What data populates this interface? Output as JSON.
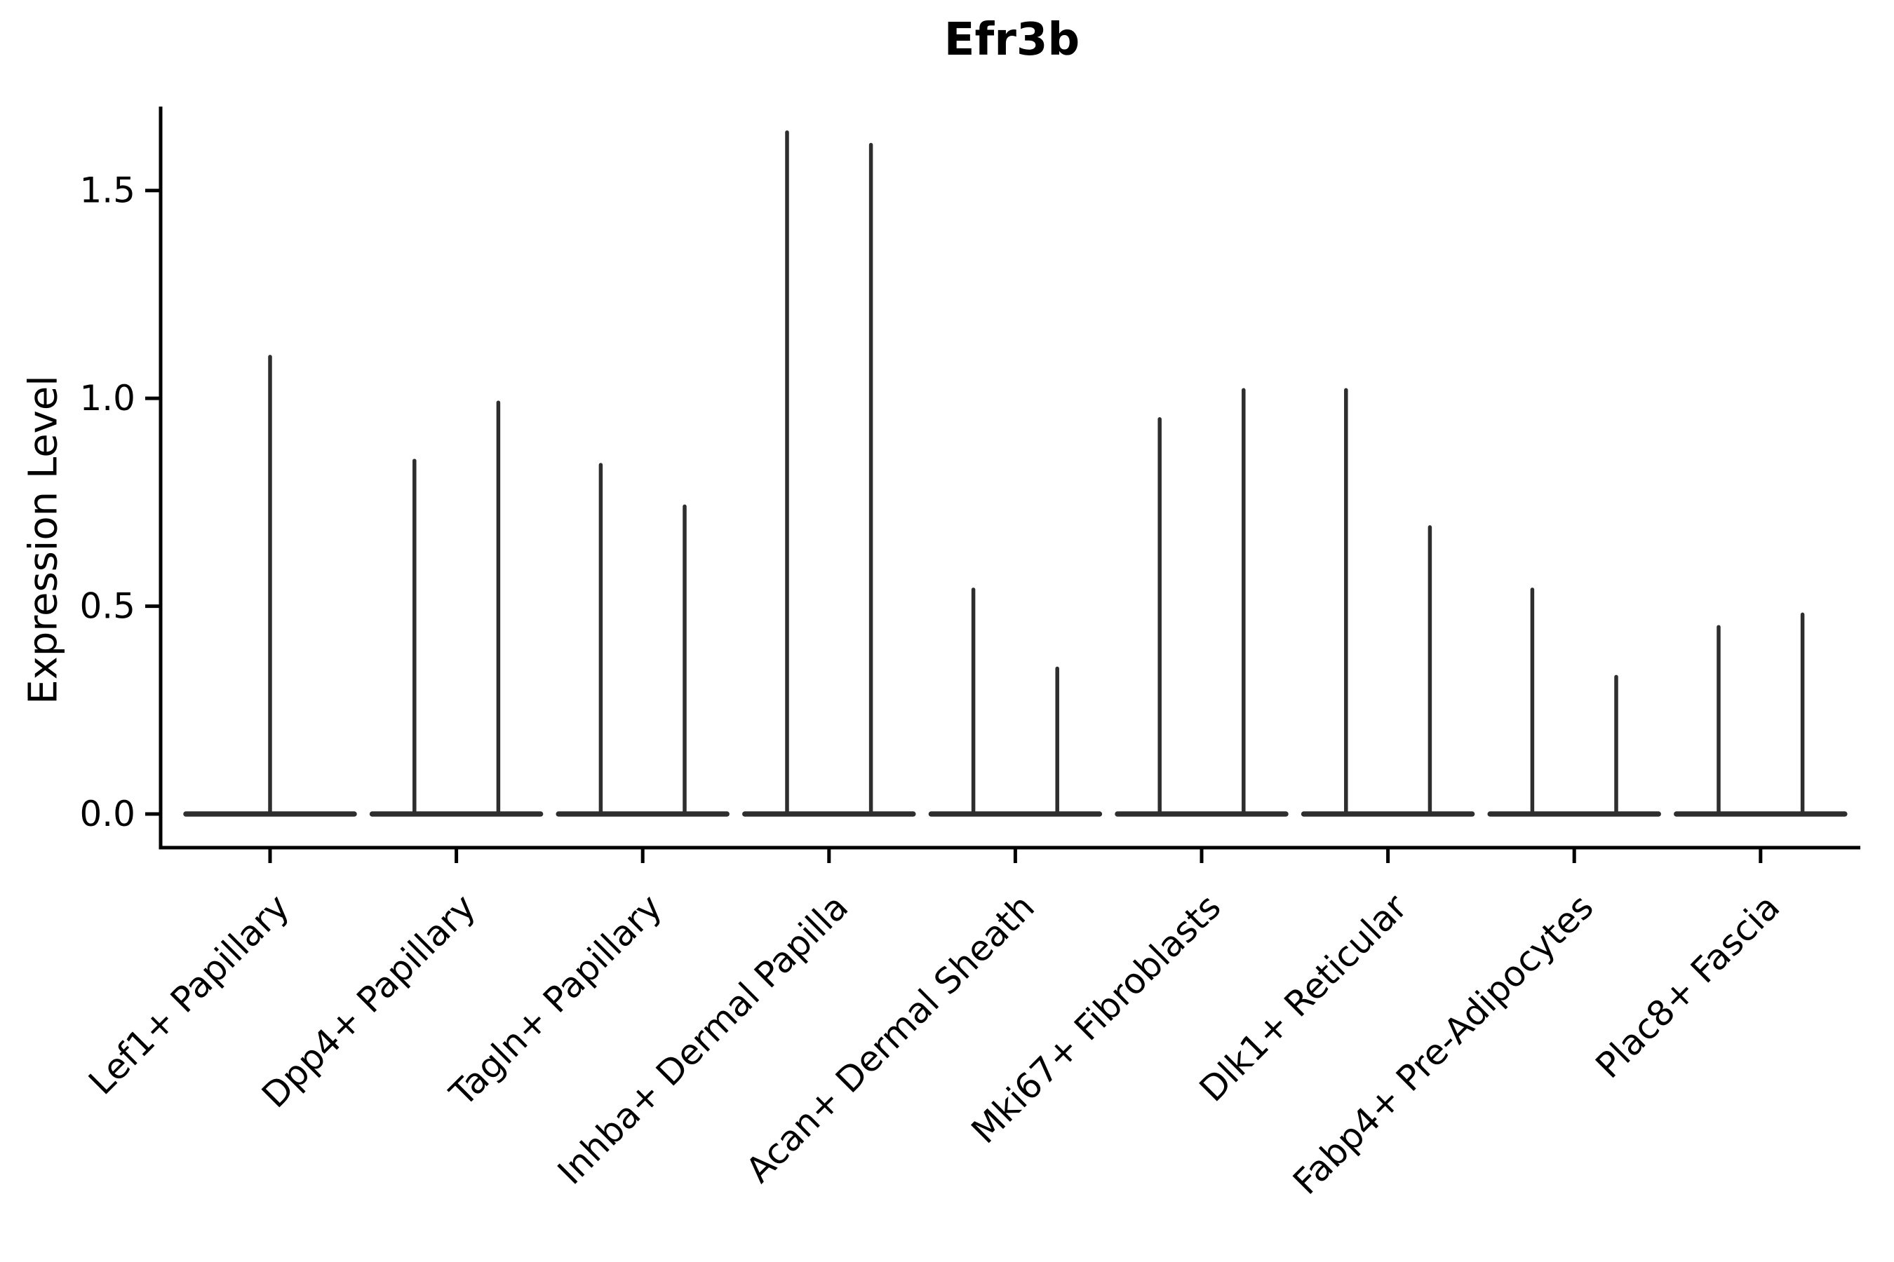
{
  "chart_data": {
    "type": "violin",
    "title": "Efr3b",
    "ylabel": "Expression Level",
    "xlabel": "",
    "grid": false,
    "legend": "none",
    "ylim": [
      -0.081,
      1.702
    ],
    "ytick_labels": [
      "0.0",
      "0.5",
      "1.0",
      "1.5"
    ],
    "ytick_values": [
      0.0,
      0.5,
      1.0,
      1.5
    ],
    "categories": [
      "Lef1+ Papillary",
      "Dpp4+ Papillary",
      "Tagln+ Papillary",
      "Inhba+ Dermal Papilla",
      "Acan+ Dermal Sheath",
      "Mki67+ Fibroblasts",
      "Dlk1+ Reticular",
      "Fabp4+ Pre-Adipocytes",
      "Plac8+ Fascia"
    ],
    "violins": [
      {
        "category": "Lef1+ Papillary",
        "spike_maxima": [
          1.1
        ]
      },
      {
        "category": "Dpp4+ Papillary",
        "spike_maxima": [
          0.85,
          0.99
        ]
      },
      {
        "category": "Tagln+ Papillary",
        "spike_maxima": [
          0.84,
          0.74
        ]
      },
      {
        "category": "Inhba+ Dermal Papilla",
        "spike_maxima": [
          1.64,
          1.61
        ]
      },
      {
        "category": "Acan+ Dermal Sheath",
        "spike_maxima": [
          0.54,
          0.35
        ]
      },
      {
        "category": "Mki67+ Fibroblasts",
        "spike_maxima": [
          0.95,
          1.02
        ]
      },
      {
        "category": "Dlk1+ Reticular",
        "spike_maxima": [
          1.02,
          0.69
        ]
      },
      {
        "category": "Fabp4+ Pre-Adipocytes",
        "spike_maxima": [
          0.54,
          0.33
        ]
      },
      {
        "category": "Plac8+ Fascia",
        "spike_maxima": [
          0.45,
          0.48
        ]
      }
    ],
    "colors": {
      "violin_stroke": "#2e2e2e",
      "axis": "#000000",
      "text": "#000000",
      "background": "#ffffff"
    }
  }
}
